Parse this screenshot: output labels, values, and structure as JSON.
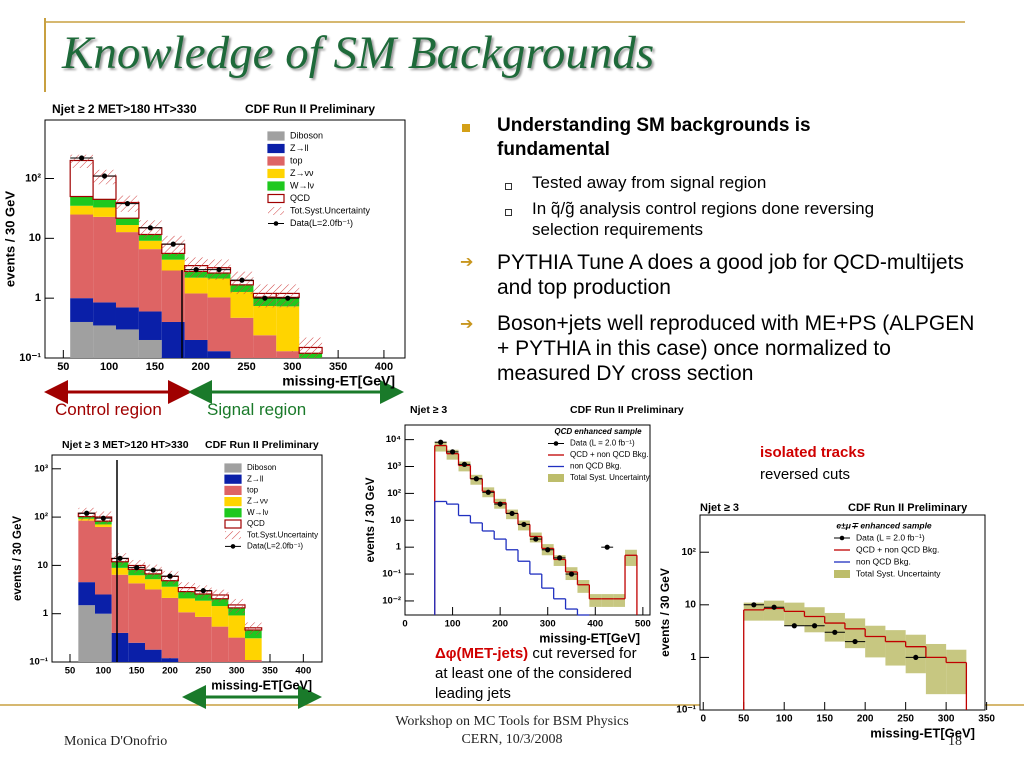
{
  "slide": {
    "title": "Knowledge of SM Backgrounds",
    "bullets": [
      {
        "text": "Understanding SM backgrounds is fundamental",
        "sub": [
          "Tested away from signal region",
          "In q̃/g̃ analysis control regions  done reversing selection requirements"
        ]
      },
      {
        "text": "PYTHIA Tune A does a good job for QCD-multijets and top production"
      },
      {
        "text": "Boson+jets well reproduced with ME+PS (ALPGEN + PYTHIA in this case) once normalized to measured DY cross section"
      }
    ],
    "annotations": {
      "control_region": "Control region",
      "signal_region": "Signal region",
      "isolated_tracks": "isolated tracks",
      "reversed_cuts": "reversed cuts",
      "dphi": "Δφ(MET-jets)",
      "dphi_rest": " cut reversed for at least one of the considered leading jets"
    },
    "footer": {
      "author": "Monica D'Onofrio",
      "event": "Workshop on MC Tools for BSM Physics",
      "place_date": "CERN, 10/3/2008",
      "page": "18"
    }
  },
  "figures": [
    {
      "header": "Njet ≥ 2  MET>180 HT>330",
      "experiment": "CDF Run II Preliminary",
      "ylabel": "events / 30 GeV",
      "xlabel": "missing-ET[GeV]",
      "log_y": true,
      "xlim": [
        30,
        423
      ],
      "ylim": [
        0.1,
        950
      ],
      "xticks": [
        50,
        100,
        150,
        200,
        250,
        300,
        350,
        400
      ],
      "yticks": [
        {
          "value": 0.1,
          "label": "10⁻¹"
        },
        1,
        10,
        {
          "value": 100,
          "label": "10²"
        }
      ],
      "bins": [
        57.5,
        82.5,
        107.5,
        132.5,
        157.5,
        182.5,
        207.5,
        232.5,
        257.5,
        282.5,
        307.5,
        332.5
      ],
      "stack": [
        {
          "name": "Diboson",
          "color": "#a0a0a0",
          "values": [
            0.4,
            0.35,
            0.3,
            0.2,
            0.1,
            0.05,
            0.03,
            0.02,
            0.01,
            0.01,
            0
          ]
        },
        {
          "name": "Z→ll",
          "color": "#0a1fa8",
          "values": [
            0.6,
            0.5,
            0.4,
            0.4,
            0.3,
            0.15,
            0.1,
            0.05,
            0.03,
            0.02,
            0
          ]
        },
        {
          "name": "top",
          "color": "#de6464",
          "values": [
            24,
            22,
            12,
            6,
            2.5,
            1,
            0.9,
            0.4,
            0.2,
            0.1,
            0.02
          ]
        },
        {
          "name": "Z→νν",
          "color": "#ffd400",
          "values": [
            10,
            10,
            4,
            2.5,
            1.5,
            1,
            1.1,
            0.8,
            0.5,
            0.6,
            0.05
          ]
        },
        {
          "name": "W→lν",
          "color": "#1ec81e",
          "values": [
            15,
            12,
            5,
            2.5,
            1.2,
            0.6,
            0.5,
            0.4,
            0.3,
            0.3,
            0.05
          ]
        },
        {
          "name": "QCD",
          "color": "#ffffff",
          "values": [
            150,
            65,
            18,
            3.4,
            2.4,
            0.7,
            0.6,
            0.3,
            0.16,
            0.17,
            0.03
          ]
        }
      ],
      "uncertainty": [
        50,
        30,
        12,
        5,
        3,
        1.3,
        1.2,
        0.8,
        0.5,
        0.5,
        0.07
      ],
      "data": [
        220,
        110,
        38,
        15,
        8,
        3,
        3,
        2,
        1,
        1,
        null
      ],
      "legend_extra": [
        {
          "name": "Tot.Syst.Uncertainty",
          "style": "hatch"
        },
        {
          "name": "Data(L=2.0fb⁻¹)",
          "style": "marker"
        }
      ]
    },
    {
      "header": "Njet ≥ 3  MET>120 HT>330",
      "experiment": "CDF Run II Preliminary",
      "ylabel": "events / 30 GeV",
      "xlabel": "missing-ET[GeV]",
      "log_y": true,
      "xlim": [
        23,
        428
      ],
      "ylim": [
        0.1,
        1930
      ],
      "xticks": [
        50,
        100,
        150,
        200,
        250,
        300,
        350,
        400
      ],
      "yticks": [
        {
          "value": 0.1,
          "label": "10⁻¹"
        },
        1,
        10,
        {
          "value": 100,
          "label": "10²"
        },
        {
          "value": 1000,
          "label": "10³"
        }
      ],
      "bins": [
        62.5,
        87.5,
        112.5,
        137.5,
        162.5,
        187.5,
        212.5,
        237.5,
        262.5,
        287.5,
        312.5,
        337.5
      ],
      "stack": [
        {
          "name": "Diboson",
          "color": "#a0a0a0",
          "values": [
            1.5,
            1,
            0.1,
            0.05,
            0.03,
            0.02,
            0.02,
            0.01,
            0.01,
            0,
            0
          ]
        },
        {
          "name": "Z→ll",
          "color": "#0a1fa8",
          "values": [
            3,
            1.5,
            0.3,
            0.2,
            0.15,
            0.1,
            0.05,
            0.05,
            0.03,
            0.02,
            0.01
          ]
        },
        {
          "name": "top",
          "color": "#de6464",
          "values": [
            80,
            60,
            6,
            4,
            3,
            2,
            1,
            0.8,
            0.5,
            0.3,
            0.1
          ]
        },
        {
          "name": "Z→νν",
          "color": "#ffd400",
          "values": [
            8,
            8,
            2.5,
            2,
            2,
            1.5,
            1,
            1,
            0.9,
            0.6,
            0.2
          ]
        },
        {
          "name": "W→lν",
          "color": "#1ec81e",
          "values": [
            10,
            12,
            3,
            2,
            1.5,
            1.2,
            0.8,
            0.7,
            0.6,
            0.4,
            0.15
          ]
        },
        {
          "name": "QCD",
          "color": "#ffffff",
          "values": [
            18,
            18,
            2,
            1.7,
            1.3,
            1.1,
            0.6,
            0.4,
            0.4,
            0.2,
            0.05
          ]
        }
      ],
      "uncertainty": [
        35,
        30,
        4,
        3,
        2.4,
        1.8,
        1,
        0.9,
        0.7,
        0.5,
        0.15
      ],
      "data": [
        120,
        95,
        14,
        9,
        8,
        6,
        null,
        3,
        null,
        null,
        null
      ],
      "legend_extra": [
        {
          "name": "Tot.Syst.Uncertainty",
          "style": "hatch"
        },
        {
          "name": "Data(L=2.0fb⁻¹)",
          "style": "marker"
        }
      ]
    },
    {
      "header": "Njet ≥ 3",
      "experiment": "CDF Run II Preliminary",
      "legend_title": "QCD enhanced sample",
      "ylabel": "events / 30 GeV",
      "xlabel": "missing-ET[GeV]",
      "log_y": true,
      "xlim": [
        0,
        515
      ],
      "ylim": [
        0.003,
        35000
      ],
      "xticks": [
        0,
        100,
        200,
        300,
        400,
        500
      ],
      "yticks": [
        {
          "value": 0.01,
          "label": "10⁻²"
        },
        {
          "value": 0.1,
          "label": "10⁻¹"
        },
        1,
        10,
        {
          "value": 100,
          "label": "10²"
        },
        {
          "value": 1000,
          "label": "10³"
        },
        {
          "value": 10000,
          "label": "10⁴"
        }
      ],
      "bins": [
        62.5,
        87.5,
        112.5,
        137.5,
        162.5,
        187.5,
        212.5,
        237.5,
        262.5,
        287.5,
        312.5,
        337.5,
        362.5,
        387.5,
        412.5,
        437.5,
        462.5,
        487.5
      ],
      "lines": [
        {
          "name": "QCD + non QCD Bkg.",
          "color": "#c00000",
          "values": [
            6000,
            3000,
            1100,
            350,
            120,
            45,
            18,
            7,
            2.5,
            0.9,
            0.35,
            0.12,
            0.04,
            0.012,
            0.012,
            0.012,
            0.5
          ]
        },
        {
          "name": "non QCD Bkg.",
          "color": "#2030c0",
          "values": [
            50,
            40,
            15,
            8,
            4,
            2,
            0.8,
            0.3,
            0.1,
            0.03,
            0.012,
            0.005,
            0.003,
            null,
            null,
            null,
            null
          ]
        }
      ],
      "uncertainty": [
        2400,
        1200,
        440,
        140,
        48,
        18,
        7,
        2.8,
        1,
        0.4,
        0.15,
        0.06,
        0.02,
        0.006,
        0.006,
        0.006,
        0.3
      ],
      "data": [
        8000,
        3500,
        1200,
        350,
        110,
        40,
        18,
        7,
        2,
        0.8,
        0.4,
        0.1,
        null,
        null,
        1,
        null,
        null
      ],
      "legend_extra": [
        {
          "name": "Data (L = 2.0 fb⁻¹)",
          "style": "marker"
        },
        {
          "name": "Total Syst. Uncertainty",
          "style": "band"
        }
      ]
    },
    {
      "header": "Njet ≥ 3",
      "experiment": "CDF Run II Preliminary",
      "legend_title": "e±μ∓ enhanced sample",
      "ylabel": "events / 30 GeV",
      "xlabel": "missing-ET[GeV]",
      "log_y": true,
      "xlim": [
        -4,
        348
      ],
      "ylim": [
        0.1,
        510
      ],
      "xticks": [
        0,
        50,
        100,
        150,
        200,
        250,
        300,
        350
      ],
      "yticks": [
        {
          "value": 0.1,
          "label": "10⁻¹"
        },
        1,
        10,
        {
          "value": 100,
          "label": "10²"
        }
      ],
      "bins": [
        50,
        75,
        100,
        125,
        150,
        175,
        200,
        225,
        250,
        275,
        300,
        325
      ],
      "lines": [
        {
          "name": "QCD + non QCD Bkg.",
          "color": "#c00000",
          "values": [
            8,
            8.5,
            7.5,
            6,
            4.5,
            3.5,
            2.5,
            2,
            1.6,
            1,
            0.8
          ]
        }
      ],
      "uncertainty": [
        3,
        3.5,
        3.5,
        3,
        2.5,
        2,
        1.5,
        1.3,
        1.1,
        0.8,
        0.6
      ],
      "data": [
        10,
        9,
        4,
        4,
        3,
        2,
        null,
        null,
        1,
        null,
        null
      ],
      "legend_extra": [
        {
          "name": "Data (L = 2.0 fb⁻¹)",
          "style": "marker"
        },
        {
          "name": "non QCD Bkg.",
          "style": "line",
          "color": "#2030c0"
        },
        {
          "name": "Total Syst. Uncertainty",
          "style": "band"
        }
      ]
    }
  ]
}
